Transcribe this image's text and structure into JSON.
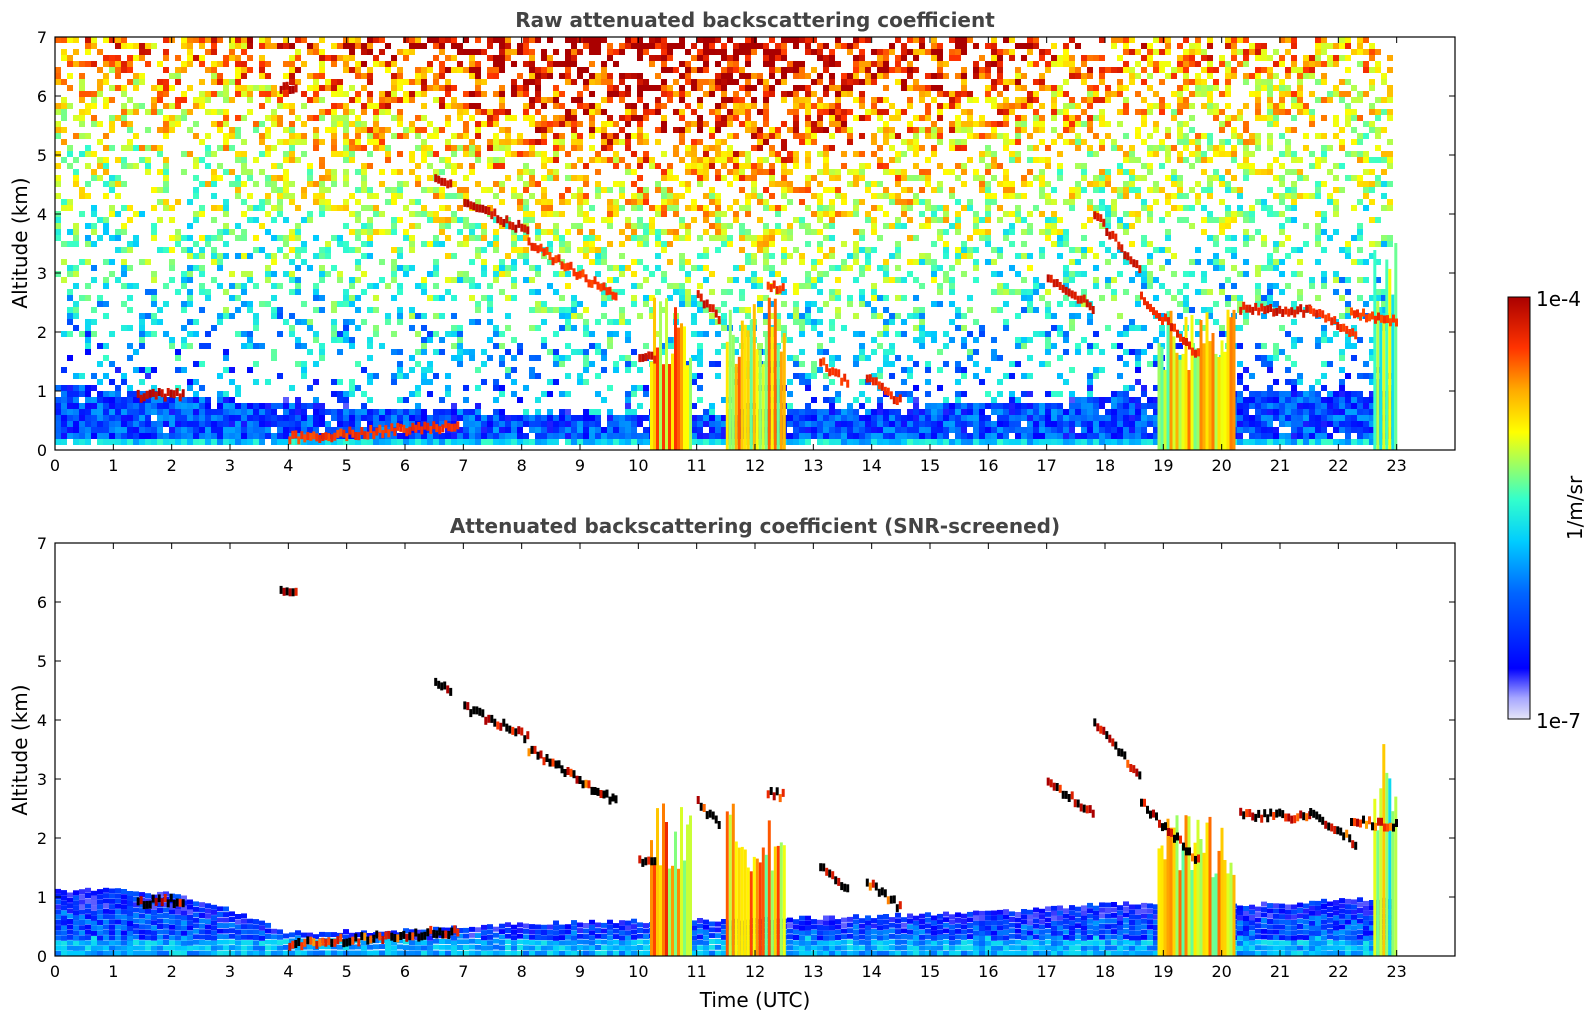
{
  "chart_data": [
    {
      "type": "heatmap",
      "title": "Raw attenuated backscattering coefficient",
      "xlabel": "",
      "ylabel": "Altitude (km)",
      "xlim": [
        0,
        24
      ],
      "ylim": [
        0,
        7
      ],
      "xticks": [
        "0",
        "1",
        "2",
        "3",
        "4",
        "5",
        "6",
        "7",
        "8",
        "9",
        "10",
        "11",
        "12",
        "13",
        "14",
        "15",
        "16",
        "17",
        "18",
        "19",
        "20",
        "21",
        "22",
        "23"
      ],
      "yticks": [
        "0",
        "1",
        "2",
        "3",
        "4",
        "5",
        "6",
        "7"
      ],
      "data_end_time": 23,
      "noise_fill": "speckle",
      "boundary_layer_top_km": [
        [
          0,
          1.05
        ],
        [
          2,
          0.85
        ],
        [
          4,
          0.7
        ],
        [
          6,
          0.6
        ],
        [
          10,
          0.5
        ],
        [
          13,
          0.6
        ],
        [
          17,
          0.75
        ],
        [
          20,
          0.9
        ],
        [
          23,
          0.9
        ]
      ],
      "cloud_layers": [
        {
          "x": [
            1.4,
            2.2
          ],
          "y": [
            0.9,
            0.95
          ],
          "level": 0.98
        },
        {
          "x": [
            3.85,
            4.15
          ],
          "y": [
            6.15,
            6.15
          ],
          "level": 0.98
        },
        {
          "x": [
            4.0,
            6.9
          ],
          "y": [
            0.2,
            0.42
          ],
          "level": 0.9
        },
        {
          "x": [
            6.5,
            6.8
          ],
          "y": [
            4.65,
            4.5
          ],
          "level": 0.95
        },
        {
          "x": [
            7.0,
            8.1
          ],
          "y": [
            4.2,
            3.7
          ],
          "level": 0.97
        },
        {
          "x": [
            8.1,
            9.6
          ],
          "y": [
            3.5,
            2.6
          ],
          "level": 0.9
        },
        {
          "x": [
            10.0,
            10.3
          ],
          "y": [
            1.6,
            1.55
          ],
          "level": 0.95
        },
        {
          "x": [
            11.0,
            11.4
          ],
          "y": [
            2.6,
            2.2
          ],
          "level": 0.95
        },
        {
          "x": [
            12.2,
            12.5
          ],
          "y": [
            2.8,
            2.7
          ],
          "level": 0.9
        },
        {
          "x": [
            13.1,
            13.6
          ],
          "y": [
            1.5,
            1.1
          ],
          "level": 0.9
        },
        {
          "x": [
            13.9,
            14.5
          ],
          "y": [
            1.25,
            0.8
          ],
          "level": 0.92
        },
        {
          "x": [
            17.0,
            17.8
          ],
          "y": [
            2.95,
            2.4
          ],
          "level": 0.95
        },
        {
          "x": [
            17.8,
            18.6
          ],
          "y": [
            4.0,
            3.0
          ],
          "level": 0.95
        },
        {
          "x": [
            18.6,
            19.6
          ],
          "y": [
            2.6,
            1.6
          ],
          "level": 0.92
        },
        {
          "x": [
            20.3,
            21.5
          ],
          "y": [
            2.4,
            2.35
          ],
          "level": 0.95
        },
        {
          "x": [
            21.5,
            22.3
          ],
          "y": [
            2.4,
            1.9
          ],
          "level": 0.92
        },
        {
          "x": [
            22.2,
            23.0
          ],
          "y": [
            2.3,
            2.2
          ],
          "level": 0.9
        }
      ],
      "precip_columns": [
        {
          "x": [
            10.2,
            10.9
          ],
          "top_km": 2.6,
          "level": 0.75
        },
        {
          "x": [
            11.5,
            12.5
          ],
          "top_km": 2.6,
          "level": 0.72
        },
        {
          "x": [
            18.9,
            20.2
          ],
          "top_km": 2.4,
          "level": 0.7
        },
        {
          "x": [
            22.6,
            23.0
          ],
          "top_km": 3.6,
          "level": 0.6
        }
      ]
    },
    {
      "type": "heatmap",
      "title": "Attenuated backscattering coefficient (SNR-screened)",
      "xlabel": "Time (UTC)",
      "ylabel": "Altitude (km)",
      "xlim": [
        0,
        24
      ],
      "ylim": [
        0,
        7
      ],
      "xticks": [
        "0",
        "1",
        "2",
        "3",
        "4",
        "5",
        "6",
        "7",
        "8",
        "9",
        "10",
        "11",
        "12",
        "13",
        "14",
        "15",
        "16",
        "17",
        "18",
        "19",
        "20",
        "21",
        "22",
        "23"
      ],
      "yticks": [
        "0",
        "1",
        "2",
        "3",
        "4",
        "5",
        "6",
        "7"
      ],
      "data_end_time": 23,
      "noise_fill": "none",
      "screened_boundary_layer_top_km": [
        [
          0,
          1.1
        ],
        [
          1,
          1.15
        ],
        [
          2,
          1.05
        ],
        [
          3,
          0.8
        ],
        [
          4,
          0.4
        ],
        [
          6,
          0.45
        ],
        [
          8,
          0.55
        ],
        [
          10,
          0.6
        ],
        [
          13,
          0.65
        ],
        [
          16,
          0.75
        ],
        [
          18,
          0.9
        ],
        [
          20,
          0.85
        ],
        [
          22,
          0.95
        ],
        [
          23,
          1.0
        ]
      ]
    }
  ],
  "colorbar": {
    "label": "1/m/sr",
    "max_label": "1e-4",
    "min_label": "1e-7",
    "colormap": [
      "#e6e6f7",
      "#a6a6ff",
      "#0000ff",
      "#0066ff",
      "#00ccff",
      "#33ffcc",
      "#99ff66",
      "#ffff00",
      "#ffaa00",
      "#ff3300",
      "#aa0000"
    ]
  }
}
